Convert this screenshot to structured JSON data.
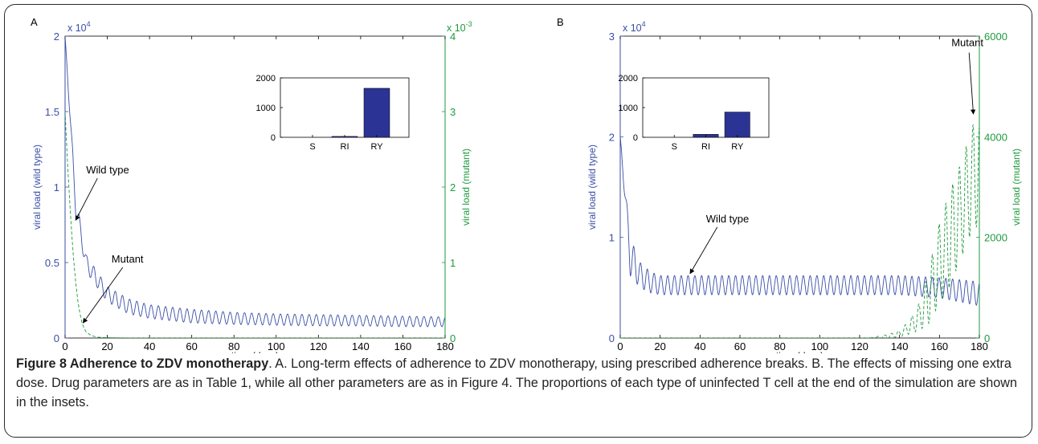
{
  "chart_data": [
    {
      "type": "line",
      "panel_label": "A",
      "xlabel": "time (days)",
      "ylabel_left": "viral load (wild type)",
      "ylabel_right": "viral load (mutant)",
      "xlim": [
        0,
        180
      ],
      "ylim_left": [
        0,
        2
      ],
      "ylim_right": [
        0,
        4
      ],
      "left_multiplier": "x 10",
      "left_exponent": "4",
      "right_multiplier": "x 10",
      "right_exponent": "-3",
      "x_ticks": [
        "0",
        "20",
        "40",
        "60",
        "80",
        "100",
        "120",
        "140",
        "160",
        "180"
      ],
      "y_ticks_left": [
        "0",
        "0.5",
        "1",
        "1.5",
        "2"
      ],
      "y_ticks_right": [
        "0",
        "1",
        "2",
        "3",
        "4"
      ],
      "series": [
        {
          "name": "Wild type",
          "color": "#3a4fa6",
          "style": "solid",
          "axis": "left",
          "period_days": 3.4,
          "envelope_upper": {
            "x": [
              0,
              5,
              10,
              20,
              30,
              40,
              60,
              80,
              100,
              120,
              140,
              160,
              180
            ],
            "y": [
              2.0,
              0.95,
              0.55,
              0.34,
              0.26,
              0.22,
              0.19,
              0.17,
              0.16,
              0.155,
              0.15,
              0.145,
              0.14
            ]
          },
          "envelope_lower": {
            "x": [
              0,
              5,
              10,
              20,
              30,
              40,
              60,
              80,
              100,
              120,
              140,
              160,
              180
            ],
            "y": [
              2.0,
              0.82,
              0.44,
              0.24,
              0.16,
              0.13,
              0.1,
              0.09,
              0.085,
              0.08,
              0.08,
              0.075,
              0.075
            ]
          }
        },
        {
          "name": "Mutant",
          "color": "#1f9a3e",
          "style": "dashed",
          "axis": "right",
          "x": [
            0,
            1,
            2,
            3,
            4,
            5,
            6,
            7,
            8,
            9,
            10,
            12,
            14,
            16,
            20,
            30,
            180
          ],
          "y": [
            3.0,
            2.4,
            1.9,
            1.45,
            1.05,
            0.75,
            0.5,
            0.33,
            0.2,
            0.13,
            0.08,
            0.04,
            0.02,
            0.01,
            0.005,
            0.001,
            0
          ]
        }
      ],
      "annotations": [
        {
          "text": "Wild type",
          "text_x": 10,
          "text_y": 1.09,
          "arrow_to_x": 5,
          "arrow_to_y": 0.78
        },
        {
          "text": "Mutant",
          "text_x": 22,
          "text_y": 0.5,
          "arrow_to_x": 8.5,
          "arrow_to_y": 0.1
        }
      ],
      "inset": {
        "type": "bar",
        "categories": [
          "S",
          "RI",
          "RY"
        ],
        "values": [
          0,
          30,
          1650
        ],
        "ylim": [
          0,
          2000
        ],
        "y_ticks": [
          "0",
          "1000",
          "2000"
        ],
        "color": "#2b3494"
      }
    },
    {
      "type": "line",
      "panel_label": "B",
      "xlabel": "time (days)",
      "ylabel_left": "viral load (wild type)",
      "ylabel_right": "viral load (mutant)",
      "xlim": [
        0,
        180
      ],
      "ylim_left": [
        0,
        3
      ],
      "ylim_right": [
        0,
        6000
      ],
      "left_multiplier": "x 10",
      "left_exponent": "4",
      "x_ticks": [
        "0",
        "20",
        "40",
        "60",
        "80",
        "100",
        "120",
        "140",
        "160",
        "180"
      ],
      "y_ticks_left": [
        "0",
        "1",
        "2",
        "3"
      ],
      "y_ticks_right": [
        "0",
        "2000",
        "4000",
        "6000"
      ],
      "series": [
        {
          "name": "Wild type",
          "color": "#3a4fa6",
          "style": "solid",
          "axis": "left",
          "period_days": 3.4,
          "envelope_upper": {
            "x": [
              0,
              5,
              10,
              15,
              20,
              40,
              100,
              140,
              160,
              170,
              180
            ],
            "y": [
              2.0,
              1.0,
              0.75,
              0.66,
              0.62,
              0.62,
              0.62,
              0.62,
              0.6,
              0.58,
              0.56
            ]
          },
          "envelope_lower": {
            "x": [
              0,
              5,
              10,
              15,
              20,
              40,
              100,
              140,
              160,
              170,
              180
            ],
            "y": [
              2.0,
              0.62,
              0.5,
              0.45,
              0.43,
              0.43,
              0.43,
              0.43,
              0.4,
              0.36,
              0.32
            ]
          }
        },
        {
          "name": "Mutant",
          "color": "#1f9a3e",
          "style": "dashed",
          "axis": "right",
          "period_days": 3.4,
          "envelope_upper": {
            "x": [
              0,
              125,
              135,
              140,
              145,
              150,
              155,
              160,
              165,
              170,
              175,
              178
            ],
            "y": [
              0,
              0,
              80,
              150,
              350,
              700,
              1400,
              2300,
              2900,
              3400,
              4000,
              4400
            ]
          },
          "envelope_lower": {
            "x": [
              0,
              125,
              135,
              140,
              145,
              150,
              155,
              160,
              165,
              170,
              175,
              178
            ],
            "y": [
              0,
              0,
              0,
              20,
              80,
              150,
              300,
              700,
              1000,
              1500,
              2000,
              2200
            ]
          }
        }
      ],
      "annotations": [
        {
          "text": "Wild type",
          "text_x": 43,
          "text_y": 1.15,
          "arrow_to_x": 35,
          "arrow_to_y": 0.64
        },
        {
          "text": "Mutant",
          "text_x": 166,
          "text_y": 5800,
          "arrow_to_x": 177,
          "arrow_to_y": 4450
        }
      ],
      "inset": {
        "type": "bar",
        "categories": [
          "S",
          "RI",
          "RY"
        ],
        "values": [
          0,
          100,
          850
        ],
        "ylim": [
          0,
          2000
        ],
        "y_ticks": [
          "0",
          "1000",
          "2000"
        ],
        "color": "#2b3494"
      }
    }
  ],
  "caption": {
    "bold": "Figure 8 Adherence to ZDV monotherapy",
    "text": ". A. Long-term effects of adherence to ZDV monotherapy, using prescribed adherence breaks. B. The effects of missing one extra dose. Drug parameters are as in Table 1, while all other parameters are as in Figure 4. The proportions of each type of uninfected T cell at the end of the simulation are shown in the insets."
  },
  "colors": {
    "wild_type": "#3a4fa6",
    "mutant": "#1f9a3e",
    "bar": "#2b3494",
    "left_axis": "#3a4fa6",
    "right_axis": "#1f9a3e"
  }
}
